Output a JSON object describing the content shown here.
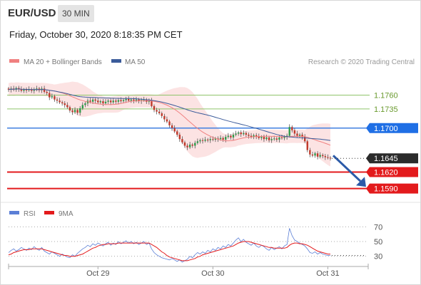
{
  "header": {
    "symbol": "EUR/USD",
    "timeframe": "30 MIN",
    "datetime": "Friday, October 30, 2020 8:18:35 PM CET"
  },
  "legend": {
    "items": [
      {
        "label": "MA 20 + Bollinger Bands",
        "color": "#f08080"
      },
      {
        "label": "MA 50",
        "color": "#3b5b9a"
      }
    ],
    "copyright": "Research © 2020 Trading Central"
  },
  "rsi_legend": {
    "items": [
      {
        "label": "RSI",
        "color": "#5b7fd6"
      },
      {
        "label": "9MA",
        "color": "#e31a1c"
      }
    ]
  },
  "chart_data": [
    {
      "type": "candlestick",
      "y_range": [
        1.157,
        1.181
      ],
      "x_labels": [
        {
          "label": "Oct 29",
          "index": 35
        },
        {
          "label": "Oct 30",
          "index": 80
        },
        {
          "label": "Oct 31",
          "index": 125
        }
      ],
      "levels": [
        {
          "value": 1.176,
          "label": "1.1760",
          "style": "resistance"
        },
        {
          "value": 1.1735,
          "label": "1.1735",
          "style": "resistance"
        },
        {
          "value": 1.17,
          "label": "1.1700",
          "style": "pivot"
        },
        {
          "value": 1.1645,
          "label": "1.1645",
          "style": "last"
        },
        {
          "value": 1.162,
          "label": "1.1620",
          "style": "support"
        },
        {
          "value": 1.159,
          "label": "1.1590",
          "style": "support"
        }
      ],
      "closes": [
        1.177,
        1.1772,
        1.177,
        1.1773,
        1.1771,
        1.1768,
        1.177,
        1.1769,
        1.1771,
        1.1768,
        1.177,
        1.1772,
        1.1769,
        1.1772,
        1.1766,
        1.1764,
        1.1756,
        1.1758,
        1.1752,
        1.175,
        1.1747,
        1.1745,
        1.1742,
        1.1738,
        1.1732,
        1.1729,
        1.1733,
        1.1728,
        1.1736,
        1.1742,
        1.1745,
        1.175,
        1.1748,
        1.1752,
        1.175,
        1.1747,
        1.1749,
        1.1745,
        1.1748,
        1.175,
        1.1747,
        1.175,
        1.1748,
        1.1751,
        1.1749,
        1.1751,
        1.1753,
        1.175,
        1.1752,
        1.175,
        1.1752,
        1.1749,
        1.1751,
        1.1752,
        1.1748,
        1.175,
        1.174,
        1.1733,
        1.173,
        1.1727,
        1.1722,
        1.1716,
        1.1712,
        1.1705,
        1.17,
        1.1694,
        1.1688,
        1.168,
        1.1674,
        1.1668,
        1.1665,
        1.167,
        1.1668,
        1.1673,
        1.1676,
        1.1678,
        1.1677,
        1.1679,
        1.1678,
        1.168,
        1.1679,
        1.1681,
        1.168,
        1.1682,
        1.1679,
        1.1684,
        1.1686,
        1.1683,
        1.1688,
        1.169,
        1.1692,
        1.1689,
        1.1691,
        1.1688,
        1.1686,
        1.1684,
        1.1687,
        1.1685,
        1.1682,
        1.1684,
        1.168,
        1.1683,
        1.1678,
        1.168,
        1.1681,
        1.1679,
        1.1683,
        1.1682,
        1.1684,
        1.1686,
        1.1702,
        1.1696,
        1.169,
        1.1686,
        1.1688,
        1.1684,
        1.1676,
        1.166,
        1.1652,
        1.165,
        1.1654,
        1.1648,
        1.1651,
        1.1649,
        1.1647,
        1.1646,
        1.1645
      ],
      "projection": {
        "from": 1.165,
        "to": 1.1597
      }
    },
    {
      "type": "line",
      "name": "RSI",
      "y_range": [
        20,
        80
      ],
      "levels": [
        70,
        50,
        30
      ],
      "series": [
        {
          "name": "RSI",
          "values": [
            35,
            38,
            40,
            37,
            39,
            42,
            40,
            38,
            41,
            39,
            43,
            40,
            38,
            42,
            37,
            35,
            33,
            36,
            34,
            32,
            30,
            33,
            31,
            29,
            28,
            32,
            30,
            34,
            37,
            40,
            42,
            45,
            43,
            47,
            45,
            48,
            46,
            44,
            47,
            49,
            45,
            48,
            46,
            50,
            47,
            49,
            51,
            48,
            50,
            47,
            49,
            46,
            48,
            50,
            46,
            48,
            40,
            35,
            32,
            30,
            28,
            27,
            26,
            25,
            27,
            25,
            23,
            25,
            22,
            24,
            26,
            30,
            28,
            32,
            35,
            33,
            36,
            34,
            38,
            36,
            40,
            38,
            42,
            40,
            44,
            42,
            46,
            44,
            48,
            52,
            55,
            50,
            53,
            49,
            47,
            45,
            48,
            44,
            42,
            45,
            43,
            40,
            38,
            42,
            39,
            41,
            43,
            40,
            44,
            46,
            68,
            58,
            52,
            50,
            48,
            46,
            44,
            40,
            35,
            34,
            36,
            33,
            35,
            33,
            32,
            31,
            31
          ]
        },
        {
          "name": "9MA",
          "values": [
            32,
            33,
            35,
            36,
            37,
            38,
            39,
            39,
            39,
            40,
            40,
            40,
            40,
            40,
            39,
            38,
            37,
            36,
            35,
            34,
            33,
            32,
            31,
            31,
            30,
            30,
            30,
            31,
            32,
            33,
            35,
            37,
            39,
            41,
            42,
            44,
            45,
            46,
            46,
            47,
            47,
            47,
            47,
            48,
            48,
            48,
            48,
            48,
            48,
            48,
            48,
            48,
            48,
            48,
            48,
            48,
            46,
            44,
            42,
            39,
            36,
            34,
            31,
            29,
            28,
            27,
            26,
            25,
            24,
            24,
            24,
            25,
            26,
            27,
            29,
            30,
            32,
            33,
            34,
            35,
            36,
            37,
            38,
            39,
            40,
            41,
            42,
            43,
            44,
            46,
            48,
            49,
            50,
            50,
            50,
            49,
            48,
            47,
            46,
            45,
            44,
            43,
            42,
            42,
            41,
            41,
            41,
            41,
            41,
            42,
            45,
            47,
            48,
            48,
            47,
            47,
            46,
            45,
            43,
            41,
            39,
            37,
            36,
            35,
            34,
            33,
            33
          ]
        }
      ]
    }
  ]
}
